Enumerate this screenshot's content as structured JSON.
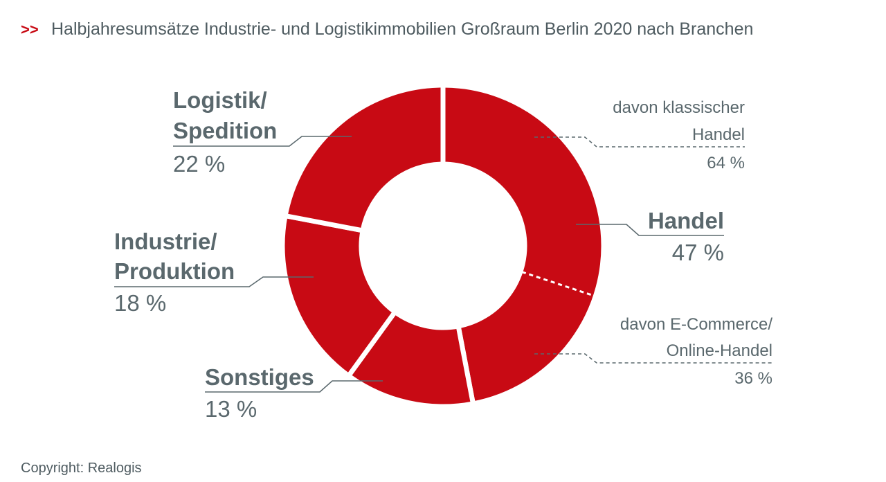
{
  "colors": {
    "slice": "#c80a14",
    "text": "#5a686d",
    "leader": "#5a686d",
    "accent": "#c80a14"
  },
  "chart_data": {
    "type": "pie",
    "variant": "donut",
    "title_marker": ">>",
    "title": "Halbjahresumsätze Industrie- und Logistikimmobilien Großraum Berlin 2020 nach Branchen",
    "unit": "%",
    "slices": [
      {
        "label_lines": [
          "Handel"
        ],
        "value": 47,
        "value_text": "47 %"
      },
      {
        "label_lines": [
          "Sonstiges"
        ],
        "value": 13,
        "value_text": "13 %"
      },
      {
        "label_lines": [
          "Industrie/",
          "Produktion"
        ],
        "value": 18,
        "value_text": "18 %"
      },
      {
        "label_lines": [
          "Logistik/",
          "Spedition"
        ],
        "value": 22,
        "value_text": "22 %"
      }
    ],
    "sub_breakdown": {
      "parent": "Handel",
      "parts": [
        {
          "label_lines": [
            "davon klassischer",
            "Handel"
          ],
          "value": 64,
          "value_text": "64 %"
        },
        {
          "label_lines": [
            "davon E-Commerce/",
            "Online-Handel"
          ],
          "value": 36,
          "value_text": "36 %"
        }
      ]
    }
  },
  "footer": {
    "copyright": "Copyright: Realogis"
  }
}
